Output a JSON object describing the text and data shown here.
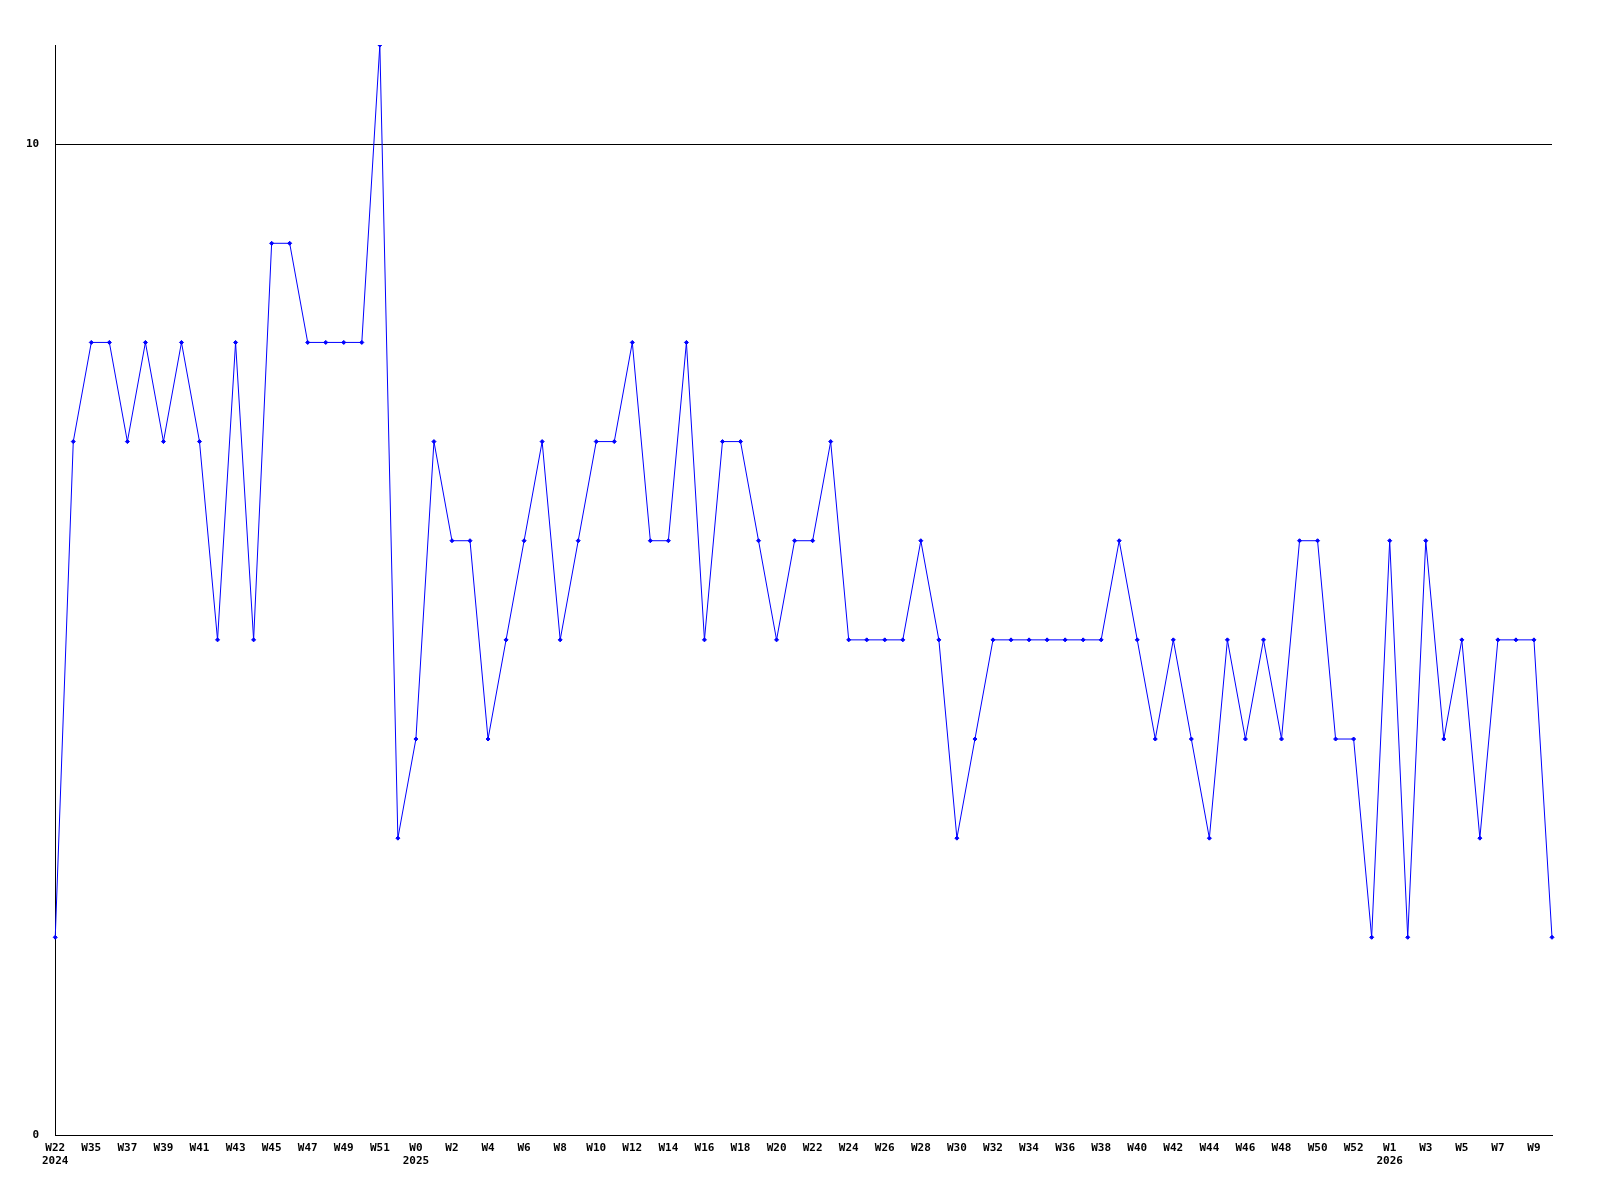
{
  "chart_data": {
    "type": "line",
    "categories": [
      "W22\n2024",
      null,
      "W35",
      null,
      "W37",
      null,
      "W39",
      null,
      "W41",
      null,
      "W43",
      null,
      "W45",
      null,
      "W47",
      null,
      "W49",
      null,
      "W51",
      null,
      "W0\n2025",
      null,
      "W2",
      null,
      "W4",
      null,
      "W6",
      null,
      "W8",
      null,
      "W10",
      null,
      "W12",
      null,
      "W14",
      null,
      "W16",
      null,
      "W18",
      null,
      "W20",
      null,
      "W22",
      null,
      "W24",
      null,
      "W26",
      null,
      "W28",
      null,
      "W30",
      null,
      "W32",
      null,
      "W34",
      null,
      "W36",
      null,
      "W38",
      null,
      "W40",
      null,
      "W42",
      null,
      "W44",
      null,
      "W46",
      null,
      "W48",
      null,
      "W50",
      null,
      "W52",
      null,
      "W1\n2026",
      null,
      "W3",
      null,
      "W5",
      null,
      "W7",
      null,
      "W9",
      null
    ],
    "series": [
      {
        "color": "#0000ff",
        "values": [
          2,
          7,
          8,
          8,
          7,
          8,
          7,
          8,
          7,
          5,
          8,
          5,
          9,
          9,
          8,
          8,
          8,
          8,
          11,
          3,
          4,
          7,
          6,
          6,
          4,
          5,
          6,
          7,
          5,
          6,
          7,
          7,
          8,
          6,
          6,
          8,
          5,
          7,
          7,
          6,
          5,
          6,
          6,
          7,
          5,
          5,
          5,
          5,
          6,
          5,
          3,
          4,
          5,
          5,
          5,
          5,
          5,
          5,
          5,
          6,
          5,
          4,
          5,
          4,
          3,
          5,
          4,
          5,
          4,
          6,
          6,
          4,
          4,
          2,
          6,
          2,
          6,
          4,
          5,
          3,
          5,
          5,
          5,
          2
        ]
      }
    ],
    "ylim": [
      0,
      11
    ],
    "yticks": [
      0,
      10
    ],
    "grid": "y",
    "legend": false,
    "marker": "diamond"
  }
}
